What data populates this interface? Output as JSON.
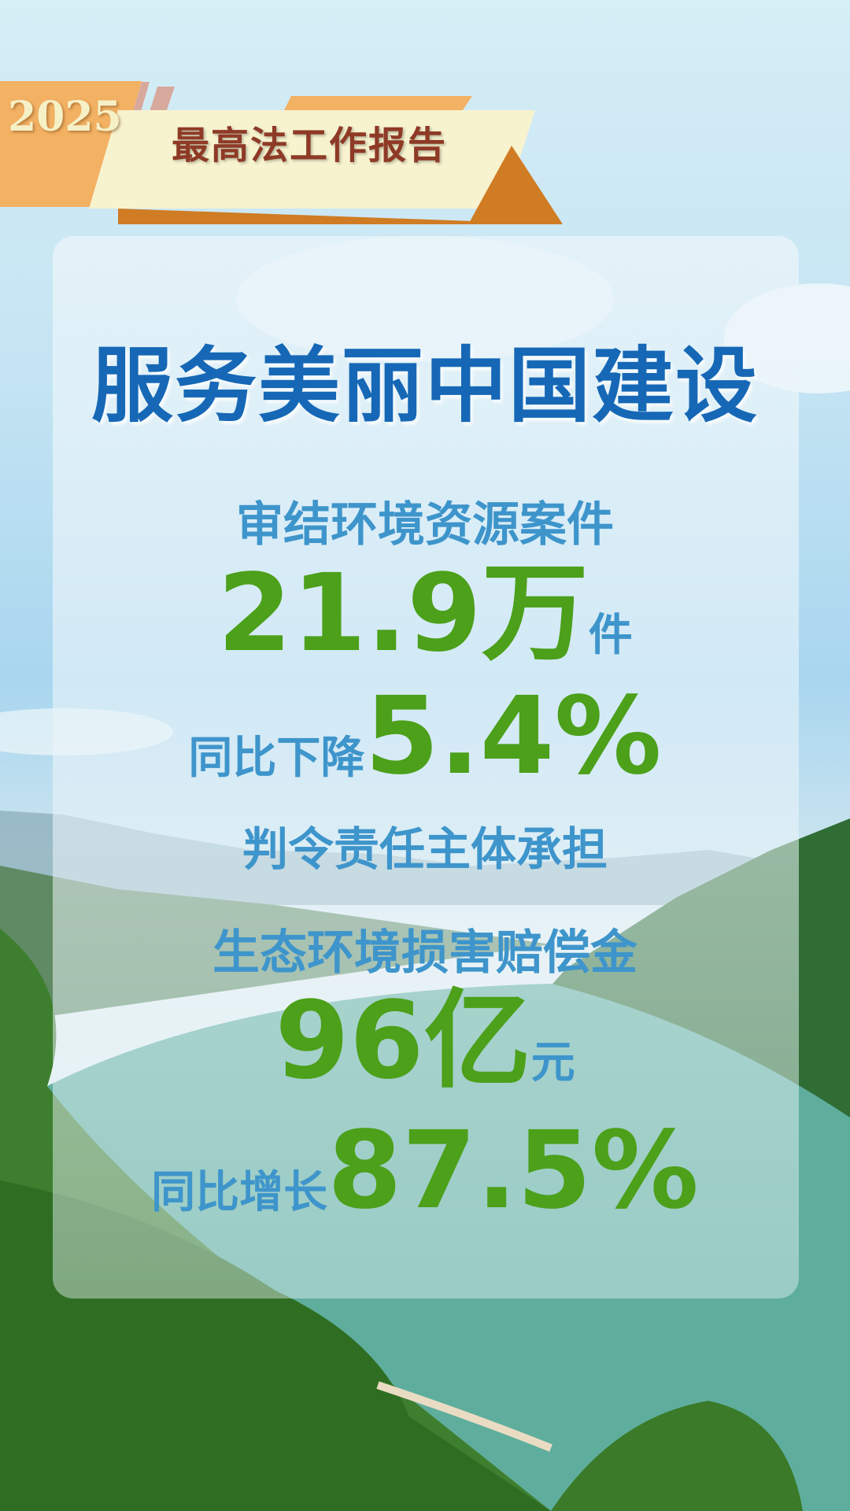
{
  "header": {
    "year": "2025",
    "title": "最高法工作报告"
  },
  "main": {
    "title": "服务美丽中国建设",
    "stat1": {
      "label": "审结环境资源案件",
      "value": "21.9",
      "unit_big": "万",
      "unit_small": "件"
    },
    "stat2": {
      "label": "同比下降",
      "value": "5.4%"
    },
    "stat3": {
      "label_line1": "判令责任主体承担",
      "label_line2": "生态环境损害赔偿金",
      "value": "96",
      "unit_big": "亿",
      "unit_small": "元"
    },
    "stat4": {
      "label": "同比增长",
      "value": "87.5%"
    }
  },
  "colors": {
    "title_blue": "#1668b6",
    "label_blue": "#3e95cb",
    "number_green": "#4ca01a",
    "banner_orange": "#f3b163",
    "banner_cream": "#f7f3cf",
    "banner_text": "#8e3a26"
  }
}
